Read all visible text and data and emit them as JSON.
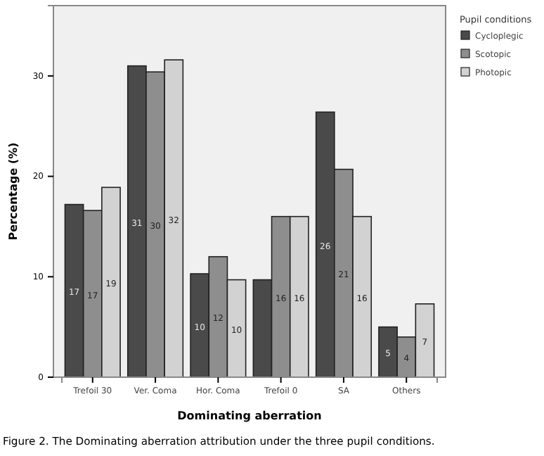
{
  "chart_data": {
    "type": "bar",
    "title": "Figure 2. The Dominating aberration attribution under the three pupil conditions.",
    "xlabel": "Dominating aberration",
    "ylabel": "Percentage (%)",
    "legend_title": "Pupil conditions",
    "categories": [
      "Trefoil 30",
      "Ver. Coma",
      "Hor. Coma",
      "Trefoil 0",
      "SA",
      "Others"
    ],
    "series": [
      {
        "name": "Cycloplegic",
        "color": "#4a4a4a",
        "values": [
          17.2,
          31,
          10.3,
          9.7,
          26.4,
          5
        ],
        "value_labels": [
          "17",
          "31",
          "10",
          null,
          "26",
          "5"
        ]
      },
      {
        "name": "Scotopic",
        "color": "#8e8e8e",
        "values": [
          16.6,
          30.4,
          12,
          16,
          20.7,
          4
        ],
        "value_labels": [
          "17",
          "30",
          "12",
          "16",
          "21",
          "4"
        ]
      },
      {
        "name": "Photopic",
        "color": "#d2d2d2",
        "values": [
          18.9,
          31.6,
          9.7,
          16,
          16,
          7.3
        ],
        "value_labels": [
          "19",
          "32",
          "10",
          "16",
          "16",
          "7"
        ]
      }
    ],
    "ylim": [
      0,
      37
    ],
    "yticks": [
      0,
      10,
      20,
      30
    ],
    "grid": false,
    "legend": "top right"
  }
}
